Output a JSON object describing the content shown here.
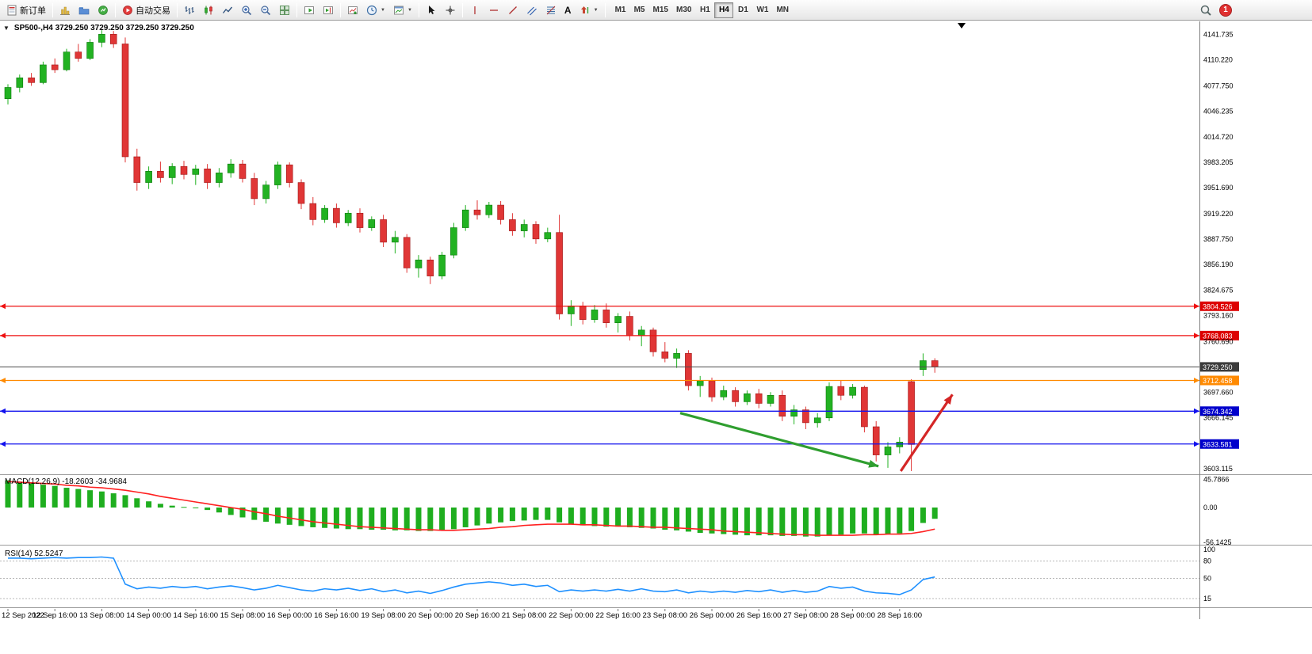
{
  "toolbar": {
    "new_order_label": "新订单",
    "auto_trading_label": "自动交易",
    "text_tool_label": "A",
    "timeframes": [
      {
        "label": "M1",
        "active": false
      },
      {
        "label": "M5",
        "active": false
      },
      {
        "label": "M15",
        "active": false
      },
      {
        "label": "M30",
        "active": false
      },
      {
        "label": "H1",
        "active": false
      },
      {
        "label": "H4",
        "active": true
      },
      {
        "label": "D1",
        "active": false
      },
      {
        "label": "W1",
        "active": false
      },
      {
        "label": "MN",
        "active": false
      }
    ],
    "notification_count": "1"
  },
  "icons": {
    "caret": "▼",
    "one_click": "▼"
  },
  "chart": {
    "title": "SP500-,H4  3729.250 3729.250 3729.250 3729.250",
    "symbol": "SP500-",
    "period": "H4"
  },
  "chart_data": {
    "type": "candlestick",
    "symbol": "SP500-",
    "period": "H4",
    "ylim": [
      3598,
      4157
    ],
    "up_color": "#22b222",
    "down_color": "#e03636",
    "up_stroke": "#0a7a0a",
    "down_stroke": "#a01818",
    "candles": [
      [
        4062,
        4080,
        4055,
        4076
      ],
      [
        4076,
        4092,
        4070,
        4088
      ],
      [
        4088,
        4094,
        4078,
        4082
      ],
      [
        4082,
        4108,
        4080,
        4104
      ],
      [
        4104,
        4112,
        4094,
        4098
      ],
      [
        4098,
        4124,
        4096,
        4120
      ],
      [
        4120,
        4130,
        4108,
        4112
      ],
      [
        4112,
        4136,
        4110,
        4132
      ],
      [
        4132,
        4147,
        4126,
        4142
      ],
      [
        4142,
        4146,
        4125,
        4130
      ],
      [
        4130,
        4138,
        3983,
        3990
      ],
      [
        3990,
        4000,
        3948,
        3958
      ],
      [
        3958,
        3978,
        3950,
        3972
      ],
      [
        3972,
        3984,
        3958,
        3964
      ],
      [
        3964,
        3982,
        3956,
        3978
      ],
      [
        3978,
        3985,
        3962,
        3968
      ],
      [
        3968,
        3980,
        3955,
        3975
      ],
      [
        3975,
        3981,
        3950,
        3958
      ],
      [
        3958,
        3976,
        3952,
        3970
      ],
      [
        3970,
        3987,
        3964,
        3981
      ],
      [
        3981,
        3986,
        3958,
        3963
      ],
      [
        3963,
        3970,
        3930,
        3938
      ],
      [
        3938,
        3960,
        3932,
        3955
      ],
      [
        3955,
        3984,
        3950,
        3980
      ],
      [
        3980,
        3983,
        3952,
        3958
      ],
      [
        3958,
        3962,
        3925,
        3932
      ],
      [
        3932,
        3940,
        3905,
        3912
      ],
      [
        3912,
        3930,
        3908,
        3926
      ],
      [
        3926,
        3932,
        3902,
        3908
      ],
      [
        3908,
        3924,
        3904,
        3920
      ],
      [
        3920,
        3926,
        3896,
        3902
      ],
      [
        3902,
        3916,
        3898,
        3912
      ],
      [
        3912,
        3918,
        3878,
        3884
      ],
      [
        3884,
        3898,
        3870,
        3890
      ],
      [
        3890,
        3894,
        3846,
        3852
      ],
      [
        3852,
        3868,
        3840,
        3862
      ],
      [
        3862,
        3866,
        3832,
        3842
      ],
      [
        3842,
        3872,
        3838,
        3868
      ],
      [
        3868,
        3908,
        3864,
        3902
      ],
      [
        3902,
        3930,
        3898,
        3924
      ],
      [
        3924,
        3936,
        3912,
        3918
      ],
      [
        3918,
        3934,
        3914,
        3930
      ],
      [
        3930,
        3935,
        3906,
        3912
      ],
      [
        3912,
        3920,
        3892,
        3898
      ],
      [
        3898,
        3912,
        3890,
        3906
      ],
      [
        3906,
        3910,
        3882,
        3888
      ],
      [
        3888,
        3902,
        3884,
        3896
      ],
      [
        3896,
        3918,
        3788,
        3795
      ],
      [
        3795,
        3812,
        3780,
        3805
      ],
      [
        3805,
        3810,
        3782,
        3788
      ],
      [
        3788,
        3806,
        3784,
        3800
      ],
      [
        3800,
        3808,
        3778,
        3784
      ],
      [
        3784,
        3796,
        3772,
        3792
      ],
      [
        3792,
        3798,
        3762,
        3768
      ],
      [
        3768,
        3780,
        3755,
        3775
      ],
      [
        3775,
        3778,
        3742,
        3748
      ],
      [
        3748,
        3760,
        3735,
        3740
      ],
      [
        3740,
        3752,
        3728,
        3746
      ],
      [
        3746,
        3750,
        3700,
        3706
      ],
      [
        3706,
        3718,
        3692,
        3712
      ],
      [
        3712,
        3716,
        3686,
        3692
      ],
      [
        3692,
        3706,
        3688,
        3700
      ],
      [
        3700,
        3704,
        3680,
        3686
      ],
      [
        3686,
        3700,
        3682,
        3696
      ],
      [
        3696,
        3702,
        3678,
        3684
      ],
      [
        3684,
        3698,
        3680,
        3694
      ],
      [
        3694,
        3700,
        3662,
        3668
      ],
      [
        3668,
        3682,
        3658,
        3676
      ],
      [
        3676,
        3680,
        3652,
        3660
      ],
      [
        3660,
        3672,
        3654,
        3666
      ],
      [
        3666,
        3710,
        3662,
        3705
      ],
      [
        3705,
        3712,
        3688,
        3694
      ],
      [
        3694,
        3708,
        3690,
        3704
      ],
      [
        3704,
        3706,
        3648,
        3655
      ],
      [
        3655,
        3662,
        3612,
        3620
      ],
      [
        3620,
        3636,
        3604,
        3630
      ],
      [
        3630,
        3642,
        3622,
        3636
      ],
      [
        3711,
        3714,
        3600,
        3633
      ],
      [
        3726,
        3746,
        3718,
        3737
      ],
      [
        3737,
        3740,
        3722,
        3729.25
      ]
    ],
    "hlines": [
      {
        "price": 3804.526,
        "label": "3804.526",
        "color": "#ee1111",
        "badge": "#dd0000",
        "current": false
      },
      {
        "price": 3768.083,
        "label": "3768.083",
        "color": "#ee1111",
        "badge": "#dd0000",
        "current": false
      },
      {
        "price": 3729.25,
        "label": "3729.250",
        "color": "#4a4a4a",
        "badge": "#3c3c3c",
        "current": true
      },
      {
        "price": 3712.458,
        "label": "3712.458",
        "color": "#ff8a00",
        "badge": "#ff8a00",
        "current": false
      },
      {
        "price": 3674.342,
        "label": "3674.342",
        "color": "#1111ee",
        "badge": "#0000cc",
        "current": false
      },
      {
        "price": 3633.581,
        "label": "3633.581",
        "color": "#1111ee",
        "badge": "#0000cc",
        "current": false
      }
    ],
    "price_axis_labels": [
      "4141.735",
      "4110.220",
      "4077.750",
      "4046.235",
      "4014.720",
      "3983.205",
      "3951.690",
      "3919.220",
      "3887.750",
      "3856.190",
      "3824.675",
      "3793.160",
      "3760.690",
      "3697.660",
      "3666.145",
      "3603.115"
    ],
    "time_axis_labels": [
      "12 Sep 2022",
      "12 Sep 16:00",
      "13 Sep 08:00",
      "14 Sep 00:00",
      "14 Sep 16:00",
      "15 Sep 08:00",
      "16 Sep 00:00",
      "16 Sep 16:00",
      "19 Sep 08:00",
      "20 Sep 00:00",
      "20 Sep 16:00",
      "21 Sep 08:00",
      "22 Sep 00:00",
      "22 Sep 16:00",
      "23 Sep 08:00",
      "26 Sep 00:00",
      "26 Sep 16:00",
      "27 Sep 08:00",
      "28 Sep 00:00",
      "28 Sep 16:00"
    ],
    "arrows": [
      {
        "name": "downtrend-arrow",
        "color": "#2f9e2f",
        "from": {
          "i": 57.3,
          "price": 3672
        },
        "to": {
          "i": 74.2,
          "price": 3606
        }
      },
      {
        "name": "reversal-up-arrow",
        "color": "#d42626",
        "from": {
          "i": 76.1,
          "price": 3600
        },
        "to": {
          "i": 80.5,
          "price": 3695
        }
      }
    ],
    "macd": {
      "label": "MACD(12,26,9) -18.2603 -34.9684",
      "bar_color": "#1fae1f",
      "line_color": "#ff2020",
      "axis": [
        {
          "v": 45.7866,
          "t": "45.7866"
        },
        {
          "v": 0,
          "t": "0.00"
        },
        {
          "v": -56.1425,
          "t": "-56.1425"
        }
      ],
      "values": [
        44,
        42,
        40,
        37,
        35,
        32,
        30,
        28,
        26,
        23,
        20,
        15,
        10,
        6,
        3,
        1,
        -1,
        -4,
        -8,
        -12,
        -16,
        -20,
        -23,
        -26,
        -28,
        -30,
        -32,
        -33,
        -34,
        -35,
        -35,
        -36,
        -36,
        -37,
        -37,
        -38,
        -38,
        -37,
        -35,
        -32,
        -29,
        -26,
        -24,
        -22,
        -21,
        -20,
        -20,
        -24,
        -27,
        -29,
        -30,
        -31,
        -31,
        -32,
        -33,
        -34,
        -36,
        -37,
        -39,
        -41,
        -42,
        -43,
        -44,
        -45,
        -45,
        -45,
        -46,
        -46,
        -47,
        -47,
        -45,
        -44,
        -42,
        -42,
        -43,
        -43,
        -42,
        -38,
        -25,
        -18.26
      ],
      "signal": [
        42,
        41,
        40,
        39,
        38,
        36,
        35,
        33,
        32,
        30,
        28,
        25,
        22,
        18,
        15,
        12,
        9,
        6,
        3,
        0,
        -3,
        -7,
        -10,
        -14,
        -17,
        -20,
        -23,
        -25,
        -27,
        -29,
        -31,
        -32,
        -33,
        -34,
        -35,
        -36,
        -36,
        -37,
        -37,
        -36,
        -35,
        -34,
        -32,
        -31,
        -29,
        -28,
        -27,
        -27,
        -27,
        -28,
        -28,
        -29,
        -30,
        -30,
        -31,
        -32,
        -32,
        -33,
        -34,
        -35,
        -36,
        -38,
        -39,
        -40,
        -41,
        -42,
        -43,
        -44,
        -44,
        -45,
        -45,
        -45,
        -45,
        -44,
        -44,
        -43,
        -43,
        -42,
        -39,
        -34.97
      ]
    },
    "rsi": {
      "label": "RSI(14) 52.5247",
      "line_color": "#1e90ff",
      "levels": [
        80,
        50,
        15
      ],
      "axis": [
        {
          "v": 100,
          "t": "100"
        },
        {
          "v": 80,
          "t": "80"
        },
        {
          "v": 50,
          "t": "50"
        },
        {
          "v": 15,
          "t": "15"
        }
      ],
      "values": [
        85,
        85,
        84,
        85,
        86,
        85,
        86,
        86,
        87,
        85,
        40,
        32,
        35,
        33,
        36,
        34,
        36,
        32,
        35,
        37,
        34,
        30,
        33,
        38,
        34,
        30,
        28,
        32,
        30,
        33,
        29,
        32,
        27,
        30,
        25,
        28,
        24,
        29,
        35,
        40,
        42,
        44,
        42,
        38,
        40,
        36,
        38,
        27,
        30,
        28,
        30,
        28,
        31,
        28,
        32,
        28,
        27,
        30,
        25,
        28,
        26,
        28,
        26,
        29,
        27,
        30,
        26,
        29,
        26,
        28,
        36,
        33,
        35,
        28,
        25,
        24,
        22,
        30,
        48,
        52.52
      ]
    }
  }
}
